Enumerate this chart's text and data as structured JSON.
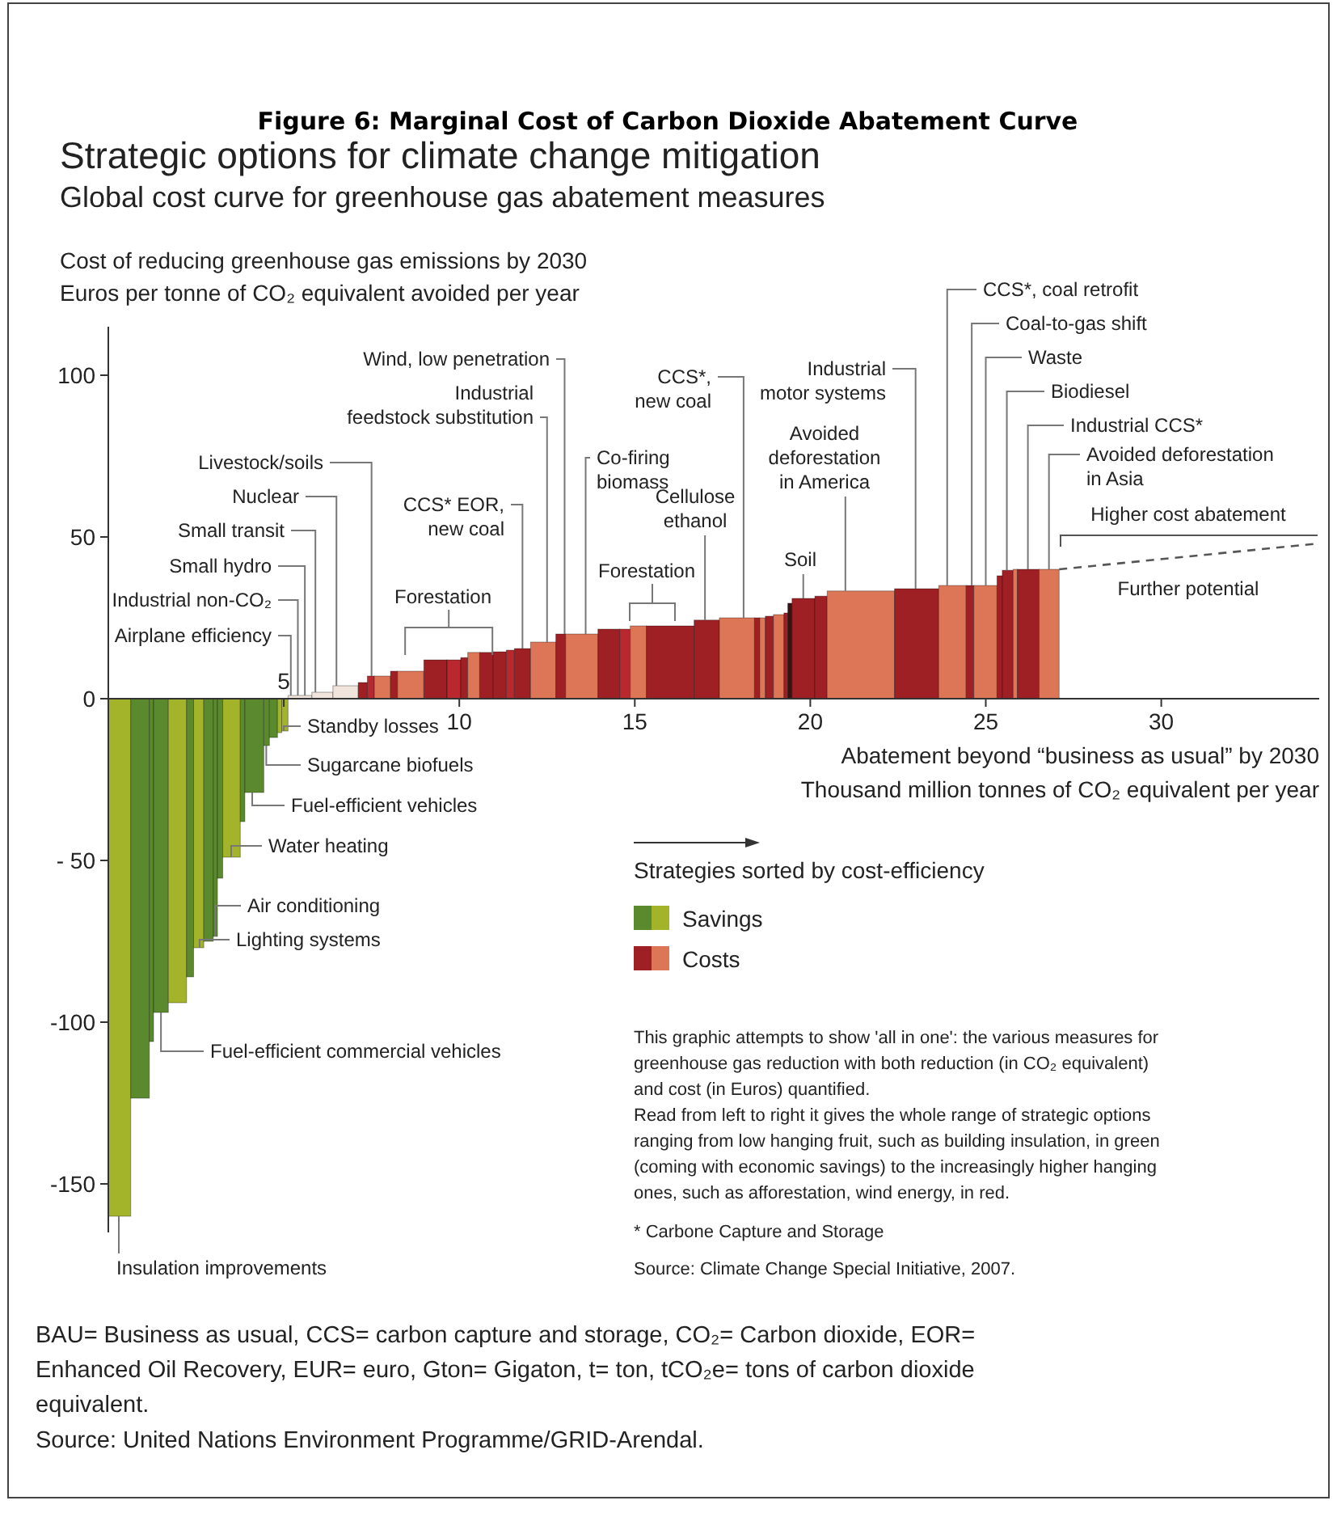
{
  "chart_data": {
    "type": "histogram",
    "title": "Figure 6: Marginal Cost of Carbon Dioxide Abatement Curve",
    "subtitle": "Strategic options for climate change mitigation\nGlobal cost curve for greenhouse gas abatement measures",
    "ylabel": "Cost of reducing greenhouse gas emissions by 2030\nEuros per tonne of CO₂ equivalent avoided per year",
    "xlabel": "Abatement beyond “business as usual” by 2030\nThousand million tonnes of CO₂ equivalent per year",
    "xlim": [
      0,
      34.5
    ],
    "xticks": [
      {
        "value": 5,
        "label": null
      },
      10,
      15,
      20,
      25,
      30
    ],
    "ylim": [
      -165,
      115
    ],
    "yticks": [
      -150,
      -100,
      {
        "value": -50,
        "label": "- 50"
      },
      0,
      50,
      100
    ],
    "legend": "bottom right",
    "series": [
      {
        "name": "Savings",
        "bins": [
          0,
          0.64,
          1.17,
          1.29,
          1.71,
          2.23,
          2.43,
          2.72,
          2.99,
          3.11,
          3.26,
          3.76,
          3.89,
          4.43,
          4.59,
          4.82,
          4.94,
          5.12
        ],
        "values": [
          -160,
          -123.5,
          -106,
          -97,
          -94,
          -86,
          -77,
          -75,
          -73.5,
          -55.5,
          -49,
          -38,
          -29,
          -14.5,
          -12,
          -10.5,
          -10
        ],
        "colors": [
          "#a4b42a",
          "#5b8a2e",
          "#5b8a2e",
          "#5b8a2e",
          "#a4b42a",
          "#5b8a2e",
          "#a4b42a",
          "#5b8a2e",
          "#5b8a2e",
          "#5b8a2e",
          "#a4b42a",
          "#5b8a2e",
          "#5b8a2e",
          "#5b8a2e",
          "#5b8a2e",
          "#a4b42a",
          "#a4b42a"
        ]
      },
      {
        "name": "Costs",
        "bins": [
          5.12,
          5.8,
          6.4,
          7.12,
          7.38,
          7.58,
          8.04,
          8.24,
          8.99,
          9.65,
          10.04,
          10.24,
          10.58,
          10.96,
          11.34,
          11.57,
          12.03,
          12.75,
          13.03,
          13.95,
          14.57,
          14.87,
          15.33,
          16.69,
          17.41,
          18.41,
          18.56,
          18.72,
          18.95,
          19.25,
          19.36,
          19.48,
          20.13,
          20.48,
          22.4,
          23.66,
          24.44,
          24.66,
          25.32,
          25.47,
          25.78,
          25.9,
          26.52,
          27.09
        ],
        "values": [
          1,
          2,
          4,
          5,
          7,
          7,
          8.5,
          8.5,
          12,
          12,
          12.7,
          14.3,
          14.3,
          14.5,
          15,
          15.5,
          17.5,
          20,
          20,
          21.5,
          21.5,
          22.5,
          22.5,
          24.3,
          25,
          25,
          25,
          25.5,
          26,
          26.5,
          29.5,
          31,
          31.7,
          33.3,
          34,
          35,
          35,
          35,
          38,
          39.7,
          40,
          40,
          40
        ],
        "colors": [
          "#f0e4dc",
          "#f0e4dc",
          "#f0e4dc",
          "#9e1f24",
          "#b8282e",
          "#dd7656",
          "#9e1f24",
          "#dd7656",
          "#9e1f24",
          "#b8282e",
          "#9e1f24",
          "#dd7656",
          "#9e1f24",
          "#9e1f24",
          "#b8282e",
          "#9e1f24",
          "#dd7656",
          "#9e1f24",
          "#dd7656",
          "#9e1f24",
          "#b8282e",
          "#dd7656",
          "#9e1f24",
          "#9e1f24",
          "#dd7656",
          "#9e1f24",
          "#dd7656",
          "#9e1f24",
          "#dd7656",
          "#9e1f24",
          "#3a1010",
          "#9e1f24",
          "#9e1f24",
          "#dd7656",
          "#9e1f24",
          "#dd7656",
          "#9e1f24",
          "#dd7656",
          "#9e1f24",
          "#9e1f24",
          "#dd7656",
          "#9e1f24",
          "#dd7656"
        ]
      },
      {
        "type": "line",
        "x": [
          27.09,
          34.5
        ],
        "values": [
          40,
          48
        ],
        "color": "#555555",
        "line_style": "dashed"
      }
    ],
    "annotations": [
      {
        "text": "Standby losses",
        "x": 5.0,
        "y": -10
      },
      {
        "text": "Sugarcane biofuels",
        "x": 4.5,
        "y": -14.5
      },
      {
        "text": "Fuel-efficient vehicles",
        "x": 4.1,
        "y": -29
      },
      {
        "text": "Water heating",
        "x": 3.5,
        "y": -49
      },
      {
        "text": "Air conditioning",
        "x": 3.05,
        "y": -73.5
      },
      {
        "text": "Lighting systems",
        "x": 2.6,
        "y": -77
      },
      {
        "text": "Fuel-efficient commercial vehicles",
        "x": 1.5,
        "y": -97
      },
      {
        "text": "Insulation improvements",
        "x": 0.3,
        "y": -160
      },
      {
        "text": "Airplane efficiency",
        "x": 5.2,
        "y": 1
      },
      {
        "text": "Industrial non-CO₂",
        "x": 5.4,
        "y": 1
      },
      {
        "text": "Small hydro",
        "x": 5.6,
        "y": 1
      },
      {
        "text": "Small transit",
        "x": 5.9,
        "y": 2
      },
      {
        "text": "Nuclear",
        "x": 6.5,
        "y": 4
      },
      {
        "text": "Livestock/soils",
        "x": 7.5,
        "y": 7
      },
      {
        "text": "Forestation",
        "x": 9.7,
        "y": 12
      },
      {
        "text": "CCS* EOR,\nnew coal",
        "x": 11.8,
        "y": 15.5
      },
      {
        "text": "Industrial\nfeedstock substitution",
        "x": 12.5,
        "y": 17.5
      },
      {
        "text": "Wind, low penetration",
        "x": 13.0,
        "y": 20
      },
      {
        "text": "Co-firing\nbiomass",
        "x": 13.6,
        "y": 20
      },
      {
        "text": "CCS*,\nnew coal",
        "x": 18.1,
        "y": 25
      },
      {
        "text": "Forestation",
        "x": 15.5,
        "y": 22.5
      },
      {
        "text": "Cellulose\nethanol",
        "x": 17.0,
        "y": 24.3
      },
      {
        "text": "Industrial\nmotor systems",
        "x": 23.0,
        "y": 34
      },
      {
        "text": "Avoided\ndeforestation\nin America",
        "x": 21.0,
        "y": 33.3
      },
      {
        "text": "Soil",
        "x": 19.8,
        "y": 31
      },
      {
        "text": "CCS*, coal retrofit",
        "x": 23.9,
        "y": 35
      },
      {
        "text": "Coal-to-gas shift",
        "x": 24.6,
        "y": 35
      },
      {
        "text": "Waste",
        "x": 25.0,
        "y": 35
      },
      {
        "text": "Biodiesel",
        "x": 25.6,
        "y": 39.7
      },
      {
        "text": "Industrial CCS*",
        "x": 26.2,
        "y": 40
      },
      {
        "text": "Avoided deforestation\nin Asia",
        "x": 26.8,
        "y": 40
      },
      "Higher cost abatement",
      "Further potential",
      "Strategies sorted by cost-efficiency",
      "This graphic attempts to show 'all in one': the various measures for\ngreenhouse gas reduction with both reduction (in CO₂ equivalent)\nand cost (in Euros) quantified.\nRead from left to right it gives the whole range of strategic options\nranging from low hanging fruit, such as building insulation, in green\n(coming with economic savings) to the increasingly higher hanging\nones, such as afforestation, wind energy, in red.",
      "* Carbone Capture and Storage",
      "Source: Climate Change Special Initiative, 2007.",
      "BAU= Business as usual, CCS= carbon capture and storage, CO₂= Carbon dioxide, EOR=\nEnhanced Oil Recovery, EUR= euro, Gton= Gigaton, t= ton, tCO₂e= tons of carbon dioxide\nequivalent.",
      "Source: United Nations Environment Programme/GRID-Arendal.",
      {
        "text": "5",
        "x": 5,
        "y": 0
      }
    ]
  }
}
